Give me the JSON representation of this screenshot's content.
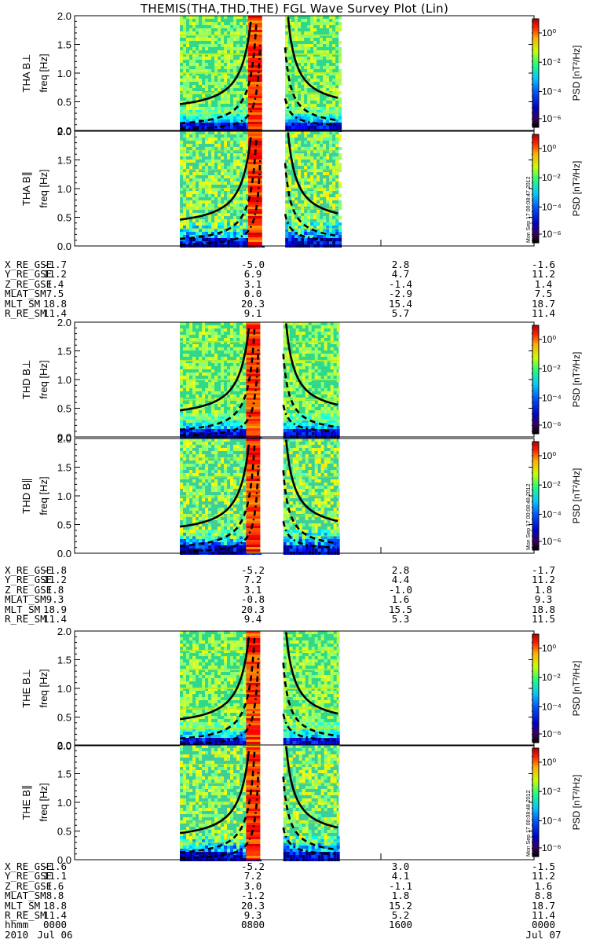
{
  "title": "THEMIS(THA,THD,THE) FGL Wave Survey Plot (Lin)",
  "colors": {
    "line": "#000000",
    "axis": "#000000",
    "background": "#ffffff"
  },
  "chart_data": [
    {
      "type": "heatmap",
      "title": "",
      "panels": [
        {
          "probe": "THA",
          "ylabel": "THA B⊥",
          "ylabel2": "freq [Hz]",
          "component": "perp",
          "stamp": ""
        },
        {
          "probe": "THA",
          "ylabel": "THA B∥",
          "ylabel2": "freq [Hz]",
          "component": "par",
          "stamp": "Mon Sep 17 00:08:47 2012"
        }
      ],
      "ylim": [
        0,
        2.0
      ],
      "yticks": [
        "0.0",
        "0.5",
        "1.0",
        "1.5",
        "2.0"
      ],
      "colorbar": {
        "label": "PSD [nT²/Hz]",
        "scale": "log",
        "ticks": [
          "10⁰",
          "10⁻²",
          "10⁻⁴",
          "10⁻⁶"
        ],
        "range": [
          1e-07,
          10.0
        ]
      },
      "data_gap_hours": [
        [
          9.8,
          11.0
        ]
      ],
      "data_coverage_hours": [
        [
          5.5,
          13.8
        ]
      ]
    },
    {
      "type": "heatmap",
      "title": "",
      "panels": [
        {
          "probe": "THD",
          "ylabel": "THD B⊥",
          "ylabel2": "freq [Hz]",
          "component": "perp",
          "stamp": ""
        },
        {
          "probe": "THD",
          "ylabel": "THD B∥",
          "ylabel2": "freq [Hz]",
          "component": "par",
          "stamp": "Mon Sep 17 00:08:48 2012"
        }
      ],
      "ylim": [
        0,
        2.0
      ],
      "yticks": [
        "0.0",
        "0.5",
        "1.0",
        "1.5",
        "2.0"
      ],
      "colorbar": {
        "label": "PSD [nT²/Hz]",
        "scale": "log",
        "ticks": [
          "10⁰",
          "10⁻²",
          "10⁻⁴",
          "10⁻⁶"
        ],
        "range": [
          1e-07,
          10.0
        ]
      },
      "data_gap_hours": [
        [
          9.7,
          10.9
        ]
      ],
      "data_coverage_hours": [
        [
          5.5,
          13.8
        ]
      ]
    },
    {
      "type": "heatmap",
      "title": "",
      "panels": [
        {
          "probe": "THE",
          "ylabel": "THE B⊥",
          "ylabel2": "freq [Hz]",
          "component": "perp",
          "stamp": ""
        },
        {
          "probe": "THE",
          "ylabel": "THE B∥",
          "ylabel2": "freq [Hz]",
          "component": "par",
          "stamp": "Mon Sep 17 00:08:48 2012"
        }
      ],
      "ylim": [
        0,
        2.0
      ],
      "yticks": [
        "0.0",
        "0.5",
        "1.0",
        "1.5",
        "2.0"
      ],
      "colorbar": {
        "label": "PSD [nT²/Hz]",
        "scale": "log",
        "ticks": [
          "10⁰",
          "10⁻²",
          "10⁻⁴",
          "10⁻⁶"
        ],
        "range": [
          1e-07,
          10.0
        ]
      },
      "data_gap_hours": [
        [
          9.7,
          10.9
        ]
      ],
      "data_coverage_hours": [
        [
          5.5,
          13.8
        ]
      ]
    }
  ],
  "orbit_blocks": [
    {
      "rows": [
        {
          "label": "X_RE_GSE",
          "values": [
            "-1.7",
            "-5.0",
            "2.8",
            "-1.6"
          ]
        },
        {
          "label": "Y_RE_GSE",
          "values": [
            "11.2",
            "6.9",
            "4.7",
            "11.2"
          ]
        },
        {
          "label": "Z_RE_GSE",
          "values": [
            "1.4",
            "3.1",
            "-1.4",
            "1.4"
          ]
        },
        {
          "label": "MLAT_SM",
          "values": [
            "7.5",
            "0.0",
            "-2.9",
            "7.5"
          ]
        },
        {
          "label": "MLT_SM",
          "values": [
            "18.8",
            "20.3",
            "15.4",
            "18.7"
          ]
        },
        {
          "label": "R_RE_SM",
          "values": [
            "11.4",
            "9.1",
            "5.7",
            "11.4"
          ]
        }
      ]
    },
    {
      "rows": [
        {
          "label": "X_RE_GSE",
          "values": [
            "-1.8",
            "-5.2",
            "2.8",
            "-1.7"
          ]
        },
        {
          "label": "Y_RE_GSE",
          "values": [
            "11.2",
            "7.2",
            "4.4",
            "11.2"
          ]
        },
        {
          "label": "Z_RE_GSE",
          "values": [
            "1.8",
            "3.1",
            "-1.0",
            "1.8"
          ]
        },
        {
          "label": "MLAT_SM",
          "values": [
            "9.3",
            "-0.8",
            "1.6",
            "9.3"
          ]
        },
        {
          "label": "MLT_SM",
          "values": [
            "18.9",
            "20.3",
            "15.5",
            "18.8"
          ]
        },
        {
          "label": "R_RE_SM",
          "values": [
            "11.4",
            "9.4",
            "5.3",
            "11.5"
          ]
        }
      ]
    },
    {
      "rows": [
        {
          "label": "X_RE_GSE",
          "values": [
            "-1.6",
            "-5.2",
            "3.0",
            "-1.5"
          ]
        },
        {
          "label": "Y_RE_GSE",
          "values": [
            "11.1",
            "7.2",
            "4.1",
            "11.2"
          ]
        },
        {
          "label": "Z_RE_GSE",
          "values": [
            "1.6",
            "3.0",
            "-1.1",
            "1.6"
          ]
        },
        {
          "label": "MLAT_SM",
          "values": [
            "8.8",
            "-1.2",
            "1.8",
            "8.8"
          ]
        },
        {
          "label": "MLT_SM",
          "values": [
            "18.8",
            "20.3",
            "15.2",
            "18.7"
          ]
        },
        {
          "label": "R_RE_SM",
          "values": [
            "11.4",
            "9.3",
            "5.2",
            "11.4"
          ]
        },
        {
          "label": "hhmm",
          "values": [
            "0000",
            "0800",
            "1600",
            "0000"
          ]
        },
        {
          "label": "2010",
          "values": [
            "Jul 06",
            "",
            "",
            "Jul 07"
          ]
        }
      ]
    }
  ]
}
